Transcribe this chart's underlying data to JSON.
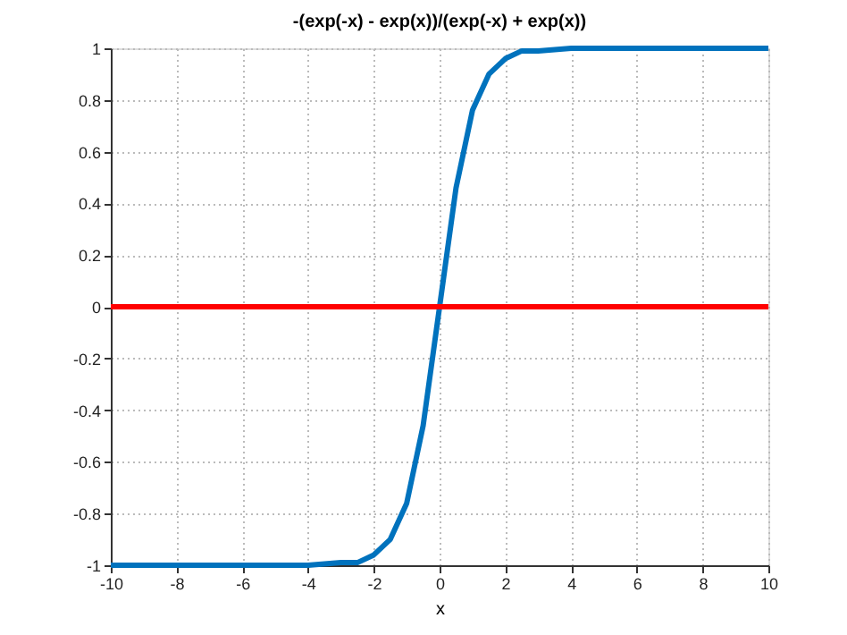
{
  "chart_data": {
    "type": "line",
    "title": "-(exp(-x) - exp(x))/(exp(-x) + exp(x))",
    "xlabel": "x",
    "series": [
      {
        "color": "#0072bd",
        "x": [
          -10,
          -6,
          -4,
          -3,
          -2.5,
          -2,
          -1.5,
          -1,
          -0.5,
          0,
          0.5,
          1,
          1.5,
          2,
          2.5,
          3,
          4,
          6,
          10
        ],
        "values": [
          -1,
          -1,
          -1,
          -0.99,
          -0.99,
          -0.96,
          -0.9,
          -0.76,
          -0.46,
          0,
          0.46,
          0.76,
          0.9,
          0.96,
          0.99,
          0.99,
          1,
          1,
          1
        ]
      }
    ],
    "ref_lines": [
      {
        "axis": "y",
        "value": 0,
        "color": "#ff0000"
      }
    ],
    "xlim": [
      -10,
      10
    ],
    "xticks": [
      -10,
      -8,
      -6,
      -4,
      -2,
      0,
      2,
      4,
      6,
      8,
      10
    ],
    "ylim": [
      -1,
      1
    ],
    "yticks": [
      -1,
      -0.8,
      -0.6,
      -0.4,
      -0.2,
      0,
      0.2,
      0.4,
      0.6,
      0.8,
      1
    ],
    "grid": true,
    "line_style": "solid"
  }
}
